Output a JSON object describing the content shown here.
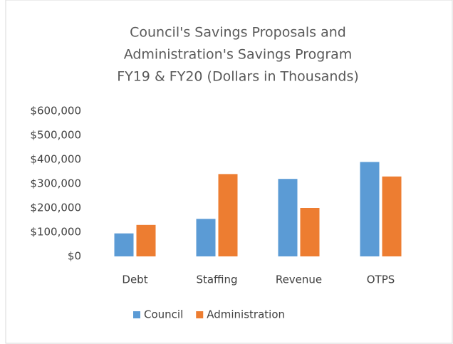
{
  "chart_data": {
    "type": "bar",
    "title": [
      "Council's Savings Proposals and",
      "Administration's Savings Program",
      "FY19 & FY20 (Dollars in Thousands)"
    ],
    "categories": [
      "Debt",
      "Staffing",
      "Revenue",
      "OTPS"
    ],
    "series": [
      {
        "name": "Council",
        "color": "#5b9bd5",
        "values": [
          95000,
          155000,
          320000,
          390000
        ]
      },
      {
        "name": "Administration",
        "color": "#ed7d31",
        "values": [
          130000,
          340000,
          200000,
          330000
        ]
      }
    ],
    "ylim": [
      0,
      600000
    ],
    "yticks": [
      {
        "value": 0,
        "label": "$0"
      },
      {
        "value": 100000,
        "label": "$100,000"
      },
      {
        "value": 200000,
        "label": "$200,000"
      },
      {
        "value": 300000,
        "label": "$300,000"
      },
      {
        "value": 400000,
        "label": "$400,000"
      },
      {
        "value": 500000,
        "label": "$500,000"
      },
      {
        "value": 600000,
        "label": "$600,000"
      }
    ],
    "grid": false,
    "legend": "bottom"
  }
}
